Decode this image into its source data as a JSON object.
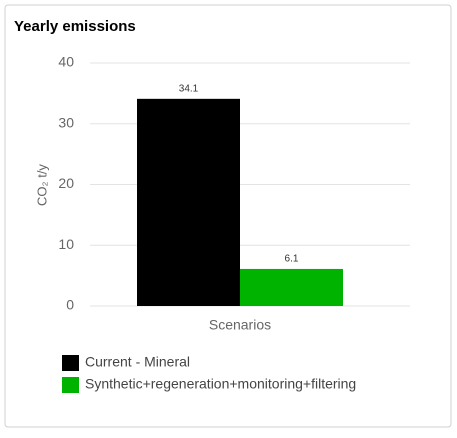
{
  "chart_data": {
    "type": "bar",
    "title": "Yearly emissions",
    "y_label": "CO₂ t/y",
    "categories": [
      "Scenarios"
    ],
    "series": [
      {
        "name": "Current - Mineral",
        "color": "#000000",
        "values": [
          34.1
        ]
      },
      {
        "name": "Synthetic+regeneration+monitoring+filtering",
        "color": "#00b300",
        "values": [
          6.1
        ]
      }
    ],
    "ylim": [
      0,
      40
    ],
    "yticks": [
      0,
      10,
      20,
      30,
      40
    ],
    "grid": true
  }
}
